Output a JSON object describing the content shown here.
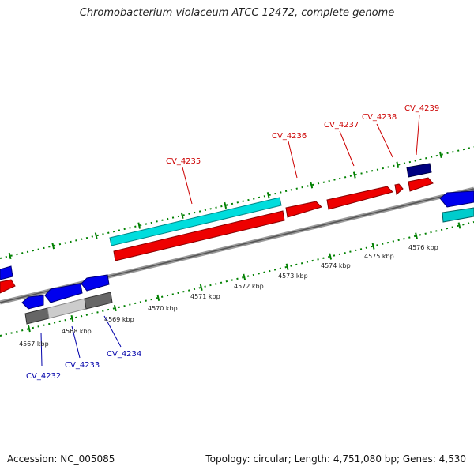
{
  "title": "Chromobacterium violaceum ATCC 12472, complete genome",
  "footer": {
    "accession": "Accession: NC_005085",
    "summary": "Topology: circular; Length: 4,751,080 bp; Genes: 4,530"
  },
  "colors": {
    "forward_gene": "#ff0000",
    "forward_gene_alt": "#000080",
    "reverse_gene": "#0000ff",
    "reverse_gene_alt": "#00cccc",
    "tick": "#008000",
    "forward_label": "#cc0000",
    "reverse_label": "#0000aa",
    "backbone": "#888888"
  },
  "kbp_labels": [
    "4567 kbp",
    "4568 kbp",
    "4569 kbp",
    "4570 kbp",
    "4571 kbp",
    "4572 kbp",
    "4573 kbp",
    "4574 kbp",
    "4575 kbp",
    "4576 kbp"
  ],
  "forward_labels": [
    "CV_4235",
    "CV_4236",
    "CV_4237",
    "CV_4238",
    "CV_4239"
  ],
  "reverse_labels": [
    "CV_4232",
    "CV_4233",
    "CV_4234"
  ]
}
